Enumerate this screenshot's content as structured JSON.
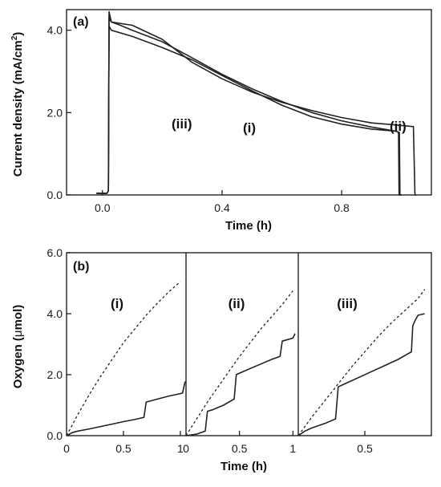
{
  "chart_data": [
    {
      "type": "line",
      "panel_label": "(a)",
      "xlabel": "Time (h)",
      "ylabel": "Current density (mA/cm",
      "ylabel_sup": "2",
      "ylabel_close": ")",
      "xlim": [
        -0.12,
        1.1
      ],
      "ylim": [
        0,
        4.5
      ],
      "xticks": [
        {
          "v": 0.0,
          "label": "0.0"
        },
        {
          "v": 0.4,
          "label": "0.4"
        },
        {
          "v": 0.8,
          "label": "0.8"
        }
      ],
      "yticks": [
        {
          "v": 0.0,
          "label": "0.0"
        },
        {
          "v": 2.0,
          "label": "2.0"
        },
        {
          "v": 4.0,
          "label": "4.0"
        }
      ],
      "series": [
        {
          "name": "(i)",
          "x": [
            -0.02,
            0.015,
            0.02,
            0.022,
            0.03,
            0.06,
            0.1,
            0.2,
            0.3,
            0.4,
            0.5,
            0.6,
            0.7,
            0.8,
            0.9,
            0.98,
            0.99,
            0.992,
            1.0
          ],
          "y": [
            0.04,
            0.04,
            0.1,
            4.3,
            4.2,
            4.12,
            4.0,
            3.72,
            3.33,
            2.93,
            2.58,
            2.27,
            2.0,
            1.8,
            1.65,
            1.55,
            1.52,
            0.0,
            0.0
          ]
        },
        {
          "name": "(ii)",
          "x": [
            -0.02,
            0.015,
            0.02,
            0.022,
            0.03,
            0.1,
            0.2,
            0.3,
            0.4,
            0.5,
            0.6,
            0.7,
            0.8,
            0.9,
            0.98,
            1.04,
            1.045,
            1.05
          ],
          "y": [
            0.04,
            0.04,
            0.1,
            4.45,
            4.2,
            4.12,
            3.78,
            3.22,
            2.82,
            2.5,
            2.25,
            2.05,
            1.88,
            1.75,
            1.7,
            1.66,
            0.0,
            0.0
          ]
        },
        {
          "name": "(iii)",
          "x": [
            -0.02,
            0.015,
            0.02,
            0.022,
            0.03,
            0.1,
            0.2,
            0.3,
            0.4,
            0.5,
            0.6,
            0.7,
            0.8,
            0.9,
            0.98,
            0.993,
            0.995,
            1.0
          ],
          "y": [
            0.04,
            0.04,
            0.1,
            4.1,
            4.0,
            3.85,
            3.58,
            3.28,
            2.9,
            2.53,
            2.18,
            1.9,
            1.72,
            1.6,
            1.55,
            1.52,
            0.0,
            0.0
          ]
        }
      ],
      "curve_labels": [
        "(iii)",
        "(i)",
        "(ii)"
      ]
    },
    {
      "type": "line",
      "panel_label": "(b)",
      "xlabel": "Time (h)",
      "ylabel": "Oxygen (",
      "ylabel_mu": "μ",
      "ylabel_tail": "mol)",
      "ylim": [
        0,
        6
      ],
      "yticks": [
        {
          "v": 0,
          "label": "0.0"
        },
        {
          "v": 2,
          "label": "2.0"
        },
        {
          "v": 4,
          "label": "4.0"
        },
        {
          "v": 6,
          "label": "6.0"
        }
      ],
      "panels": [
        {
          "name": "(i)",
          "xlim": [
            0,
            1.05
          ],
          "xticks": [
            {
              "v": 0,
              "label": "0"
            },
            {
              "v": 0.5,
              "label": "0.5"
            },
            {
              "v": 1,
              "label": "1"
            }
          ],
          "measured": {
            "x": [
              0,
              0.05,
              0.1,
              0.2,
              0.3,
              0.4,
              0.5,
              0.6,
              0.68,
              0.7,
              0.72,
              0.8,
              0.9,
              1.0,
              1.02,
              1.04,
              1.05
            ],
            "y": [
              0,
              0.1,
              0.15,
              0.22,
              0.3,
              0.38,
              0.46,
              0.53,
              0.6,
              1.1,
              1.12,
              1.2,
              1.3,
              1.38,
              1.4,
              1.75,
              1.78
            ]
          },
          "theoretical": {
            "x": [
              0,
              0.1,
              0.2,
              0.3,
              0.4,
              0.5,
              0.6,
              0.7,
              0.8,
              0.9,
              1.0
            ],
            "y": [
              0,
              0.7,
              1.35,
              1.95,
              2.5,
              3.05,
              3.5,
              3.95,
              4.35,
              4.72,
              5.05
            ]
          }
        },
        {
          "name": "(ii)",
          "xlim": [
            0,
            1.05
          ],
          "xticks": [
            {
              "v": 0,
              "label": "0"
            },
            {
              "v": 0.5,
              "label": "0.5"
            },
            {
              "v": 1,
              "label": "1"
            }
          ],
          "measured": {
            "x": [
              0,
              0.1,
              0.18,
              0.2,
              0.25,
              0.35,
              0.45,
              0.47,
              0.5,
              0.6,
              0.7,
              0.8,
              0.88,
              0.9,
              0.95,
              1.0,
              1.02
            ],
            "y": [
              0,
              0.05,
              0.15,
              0.8,
              0.85,
              1.0,
              1.2,
              2.0,
              2.05,
              2.2,
              2.35,
              2.5,
              2.6,
              3.1,
              3.15,
              3.2,
              3.35
            ]
          },
          "theoretical": {
            "x": [
              0,
              0.1,
              0.2,
              0.3,
              0.4,
              0.5,
              0.6,
              0.7,
              0.8,
              0.9,
              1.0
            ],
            "y": [
              0,
              0.55,
              1.1,
              1.6,
              2.1,
              2.6,
              3.05,
              3.5,
              3.9,
              4.3,
              4.75
            ]
          }
        },
        {
          "name": "(iii)",
          "xlim": [
            0,
            1.0
          ],
          "xticks": [
            {
              "v": 0.5,
              "label": "0.5"
            }
          ],
          "measured": {
            "x": [
              0,
              0.05,
              0.1,
              0.2,
              0.28,
              0.3,
              0.35,
              0.45,
              0.55,
              0.65,
              0.75,
              0.85,
              0.86,
              0.88,
              0.9,
              0.95
            ],
            "y": [
              0,
              0.15,
              0.25,
              0.4,
              0.55,
              1.6,
              1.7,
              1.9,
              2.1,
              2.3,
              2.5,
              2.75,
              3.6,
              3.8,
              3.95,
              4.0
            ]
          },
          "theoretical": {
            "x": [
              0,
              0.1,
              0.2,
              0.3,
              0.4,
              0.5,
              0.6,
              0.7,
              0.8,
              0.9,
              0.95
            ],
            "y": [
              0,
              0.6,
              1.15,
              1.7,
              2.25,
              2.75,
              3.25,
              3.7,
              4.1,
              4.5,
              4.8
            ]
          }
        }
      ]
    }
  ]
}
